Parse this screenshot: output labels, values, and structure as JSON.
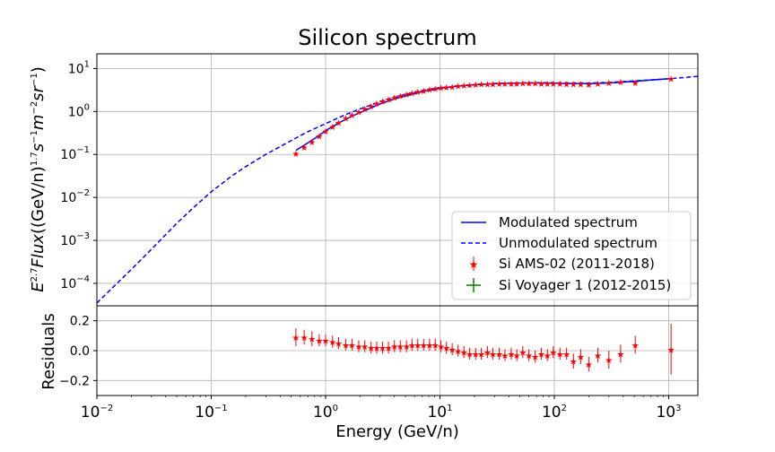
{
  "chart_data": {
    "type": "scatter",
    "title": "Silicon spectrum",
    "top_panel": {
      "xscale": "log",
      "yscale": "log",
      "xlim": [
        0.01,
        1800
      ],
      "ylim": [
        3e-05,
        22
      ],
      "ylabel": "E^{2.7} Flux((GeV/n)^{1.7} s^{-1} m^{-2} sr^{-1})",
      "ytick_values": [
        0.0001,
        0.001,
        0.01,
        0.1,
        1,
        10
      ],
      "ytick_exponents": [
        "−4",
        "−3",
        "−2",
        "−1",
        "0",
        "1"
      ],
      "grid": true
    },
    "bottom_panel": {
      "xscale": "log",
      "xlim": [
        0.01,
        1800
      ],
      "ylim": [
        -0.3,
        0.3
      ],
      "ylabel": "Residuals",
      "xlabel": "Energy (GeV/n)",
      "yticks": [
        "0.2",
        "0.0",
        "−0.2"
      ],
      "ytick_values": [
        0.2,
        0.0,
        -0.2
      ],
      "grid": true
    },
    "xtick_values": [
      0.01,
      0.1,
      1,
      10,
      100,
      1000
    ],
    "xtick_exponents": [
      "−2",
      "−1",
      "0",
      "1",
      "2",
      "3"
    ],
    "legend": {
      "placement": "lower-right",
      "entries": [
        "Modulated spectrum",
        "Unmodulated spectrum",
        "Si AMS-02 (2011-2018)",
        "Si Voyager 1 (2012-2015)"
      ]
    },
    "colors": {
      "modulated": "#0000ff",
      "unmodulated": "#0000ff",
      "ams": "#ff0000",
      "voyager": "#008000"
    },
    "series": [
      {
        "name": "Modulated spectrum",
        "style": "solid",
        "x": [
          0.55,
          0.7,
          0.85,
          1.0,
          1.3,
          1.7,
          2.2,
          3,
          4,
          5,
          7,
          10,
          15,
          20,
          30,
          50,
          70,
          100,
          150,
          200,
          300,
          500,
          700,
          1000
        ],
        "y": [
          0.125,
          0.185,
          0.26,
          0.36,
          0.54,
          0.78,
          1.05,
          1.5,
          1.95,
          2.3,
          2.9,
          3.45,
          3.95,
          4.2,
          4.45,
          4.6,
          4.6,
          4.55,
          4.45,
          4.45,
          4.6,
          5.0,
          5.4,
          5.8
        ]
      },
      {
        "name": "Unmodulated spectrum",
        "style": "dashed",
        "x": [
          0.01,
          0.015,
          0.02,
          0.03,
          0.05,
          0.07,
          0.1,
          0.15,
          0.2,
          0.3,
          0.5,
          0.7,
          1,
          1.5,
          2,
          3,
          5,
          7,
          10,
          20,
          30,
          50,
          100,
          200,
          300,
          500,
          1000,
          1800
        ],
        "y": [
          3.5e-05,
          0.0001,
          0.00021,
          0.00062,
          0.0025,
          0.0058,
          0.0135,
          0.031,
          0.052,
          0.1,
          0.21,
          0.34,
          0.52,
          0.85,
          1.15,
          1.7,
          2.5,
          3.1,
          3.6,
          4.2,
          4.5,
          4.65,
          4.65,
          4.6,
          4.75,
          5.15,
          5.75,
          6.6
        ]
      },
      {
        "name": "Si AMS-02 (2011-2018)",
        "style": "markers",
        "x": [
          0.55,
          0.65,
          0.76,
          0.88,
          1.0,
          1.15,
          1.3,
          1.5,
          1.7,
          1.95,
          2.2,
          2.5,
          2.8,
          3.15,
          3.55,
          4.0,
          4.5,
          5.1,
          5.7,
          6.4,
          7.2,
          8.1,
          9.1,
          10.2,
          11.4,
          12.8,
          14.4,
          16.2,
          18.2,
          20.5,
          23,
          26,
          29,
          33,
          37,
          42,
          47,
          53,
          60,
          68,
          77,
          87,
          98,
          112,
          128,
          147,
          170,
          200,
          240,
          300,
          380,
          510,
          1050
        ],
        "y": [
          0.105,
          0.15,
          0.2,
          0.27,
          0.35,
          0.45,
          0.56,
          0.7,
          0.84,
          1.0,
          1.17,
          1.35,
          1.55,
          1.75,
          1.95,
          2.15,
          2.35,
          2.55,
          2.75,
          2.95,
          3.1,
          3.3,
          3.45,
          3.6,
          3.75,
          3.85,
          4.0,
          4.1,
          4.2,
          4.3,
          4.35,
          4.4,
          4.45,
          4.5,
          4.55,
          4.55,
          4.55,
          4.6,
          4.6,
          4.6,
          4.55,
          4.55,
          4.5,
          4.5,
          4.45,
          4.4,
          4.4,
          4.3,
          4.55,
          4.7,
          4.9,
          4.75,
          5.9
        ]
      },
      {
        "name": "Si Voyager 1 (2012-2015)",
        "style": "markers",
        "x": [],
        "y": []
      }
    ],
    "residuals": {
      "x": [
        0.55,
        0.65,
        0.76,
        0.88,
        1.0,
        1.15,
        1.3,
        1.5,
        1.7,
        1.95,
        2.2,
        2.5,
        2.8,
        3.15,
        3.55,
        4.0,
        4.5,
        5.1,
        5.7,
        6.4,
        7.2,
        8.1,
        9.1,
        10.2,
        11.4,
        12.8,
        14.4,
        16.2,
        18.2,
        20.5,
        23,
        26,
        29,
        33,
        37,
        42,
        47,
        53,
        60,
        68,
        77,
        87,
        98,
        112,
        128,
        147,
        170,
        200,
        240,
        300,
        380,
        510,
        1050
      ],
      "y": [
        0.09,
        0.09,
        0.08,
        0.07,
        0.07,
        0.06,
        0.05,
        0.04,
        0.04,
        0.03,
        0.03,
        0.02,
        0.02,
        0.02,
        0.02,
        0.03,
        0.03,
        0.03,
        0.04,
        0.04,
        0.04,
        0.04,
        0.04,
        0.03,
        0.02,
        0.01,
        0.0,
        -0.01,
        -0.02,
        -0.02,
        -0.02,
        -0.01,
        -0.02,
        -0.02,
        -0.03,
        -0.02,
        -0.03,
        -0.01,
        -0.03,
        -0.04,
        -0.02,
        -0.03,
        -0.01,
        -0.02,
        -0.02,
        -0.07,
        -0.04,
        -0.09,
        -0.03,
        -0.06,
        -0.02,
        0.04,
        0.01
      ],
      "err": [
        0.06,
        0.05,
        0.05,
        0.04,
        0.04,
        0.04,
        0.04,
        0.04,
        0.04,
        0.04,
        0.04,
        0.04,
        0.04,
        0.04,
        0.04,
        0.04,
        0.04,
        0.04,
        0.04,
        0.04,
        0.04,
        0.04,
        0.04,
        0.04,
        0.04,
        0.04,
        0.04,
        0.04,
        0.04,
        0.04,
        0.04,
        0.04,
        0.04,
        0.04,
        0.04,
        0.04,
        0.04,
        0.04,
        0.04,
        0.04,
        0.04,
        0.04,
        0.04,
        0.04,
        0.04,
        0.05,
        0.05,
        0.05,
        0.05,
        0.06,
        0.06,
        0.06,
        0.17
      ]
    }
  }
}
